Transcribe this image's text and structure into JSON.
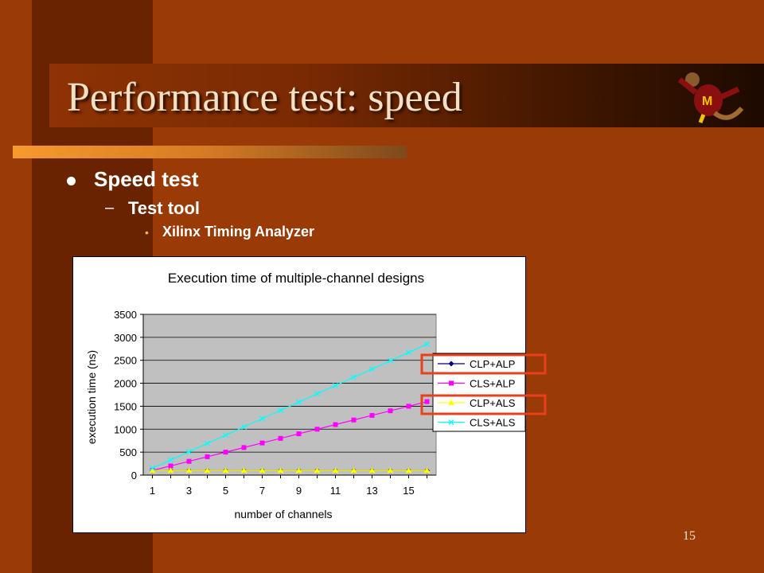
{
  "slide": {
    "title": "Performance test: speed",
    "bullet_level1": "Speed test",
    "dash": "–",
    "bullet_level2": "Test tool",
    "dot": "•",
    "bullet_level3": "Xilinx Timing Analyzer",
    "page_number": "15",
    "logo": "gopher-mascot-icon"
  },
  "chart_data": {
    "type": "line",
    "title": "Execution time of multiple-channel designs",
    "xlabel": "number of channels",
    "ylabel": "execution time (ns)",
    "x": [
      1,
      2,
      3,
      4,
      5,
      6,
      7,
      8,
      9,
      10,
      11,
      12,
      13,
      14,
      15,
      16
    ],
    "x_tick_labels": [
      "1",
      "3",
      "5",
      "7",
      "9",
      "11",
      "13",
      "15"
    ],
    "ylim": [
      0,
      3500
    ],
    "y_ticks": [
      "0",
      "500",
      "1000",
      "1500",
      "2000",
      "2500",
      "3000",
      "3500"
    ],
    "grid": "horizontal",
    "plot_background": "#c0c0c0",
    "legend_position": "right",
    "series": [
      {
        "name": "CLP+ALP",
        "color": "#000080",
        "marker": "diamond",
        "values": [
          100,
          100,
          100,
          100,
          100,
          100,
          100,
          100,
          100,
          100,
          100,
          100,
          100,
          100,
          100,
          100
        ]
      },
      {
        "name": "CLS+ALP",
        "color": "#ff00ff",
        "marker": "square",
        "values": [
          100,
          200,
          300,
          400,
          500,
          600,
          700,
          800,
          900,
          1000,
          1100,
          1200,
          1300,
          1400,
          1500,
          1600
        ]
      },
      {
        "name": "CLP+ALS",
        "color": "#ffff00",
        "marker": "triangle",
        "values": [
          100,
          100,
          100,
          100,
          100,
          100,
          100,
          100,
          100,
          100,
          100,
          100,
          100,
          100,
          100,
          100
        ]
      },
      {
        "name": "CLS+ALS",
        "color": "#00ffff",
        "marker": "x",
        "values": [
          150,
          330,
          510,
          690,
          870,
          1050,
          1230,
          1410,
          1590,
          1770,
          1950,
          2130,
          2310,
          2490,
          2670,
          2850
        ]
      }
    ],
    "highlighted_legend_entries": [
      "CLP+ALP",
      "CLP+ALS"
    ],
    "highlight_color": "#e8401c"
  }
}
